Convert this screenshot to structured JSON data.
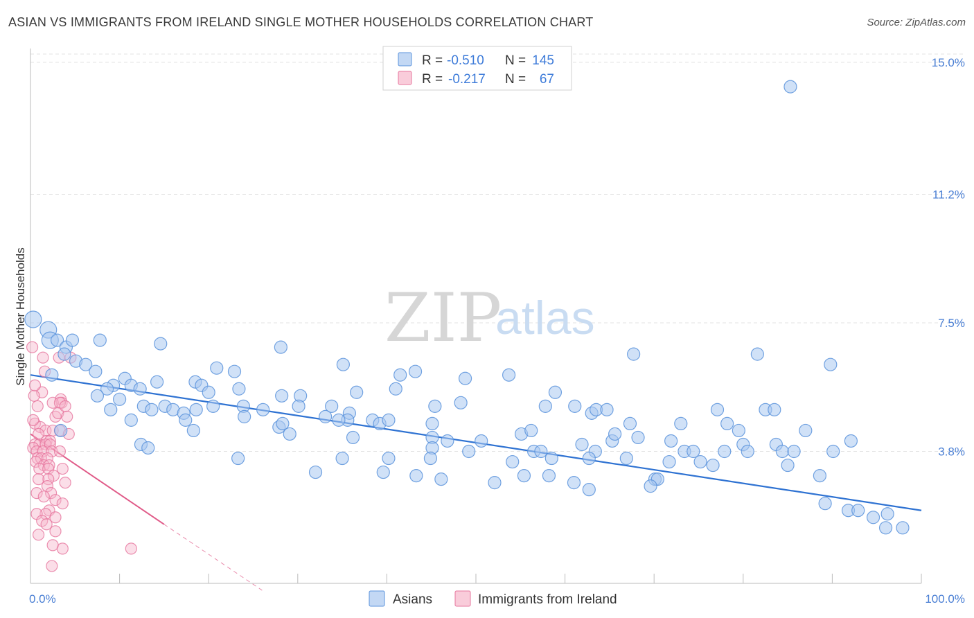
{
  "header": {
    "title": "ASIAN VS IMMIGRANTS FROM IRELAND SINGLE MOTHER HOUSEHOLDS CORRELATION CHART",
    "source": "Source: ZipAtlas.com"
  },
  "watermark": {
    "zip": "ZIP",
    "atlas": "atlas"
  },
  "legend": {
    "rows": [
      {
        "r_label": "R =",
        "r_value": "-0.510",
        "n_label": "N =",
        "n_value": "145",
        "color": "#a9c8f0"
      },
      {
        "r_label": "R =",
        "r_value": "-0.217",
        "n_label": "N =",
        "n_value": "67",
        "color": "#f4aac4"
      }
    ]
  },
  "colors": {
    "blue_fill": "#a9c8f0",
    "blue_stroke": "#5b93dc",
    "blue_line": "#2e72d2",
    "pink_fill": "#f6b6cb",
    "pink_stroke": "#e6769e",
    "pink_line": "#e05a88",
    "grid": "#e3e3e3",
    "axis": "#bbbbbb"
  },
  "chart_data": {
    "type": "scatter",
    "title": "ASIAN VS IMMIGRANTS FROM IRELAND SINGLE MOTHER HOUSEHOLDS CORRELATION CHART",
    "xlabel": "",
    "ylabel": "Single Mother Households",
    "xlim": [
      0,
      100
    ],
    "ylim": [
      0,
      15.4
    ],
    "x_tick_labels": [
      "0.0%",
      "100.0%"
    ],
    "y_ticks": [
      3.8,
      7.5,
      11.2,
      15.0
    ],
    "y_tick_labels": [
      "3.8%",
      "7.5%",
      "11.2%",
      "15.0%"
    ],
    "grid": true,
    "legend_position": "bottom",
    "series": [
      {
        "name": "Asians",
        "trend": {
          "x": [
            0,
            100
          ],
          "y": [
            6.0,
            2.1
          ]
        },
        "points": [
          [
            0.3,
            7.6
          ],
          [
            2.0,
            7.3
          ],
          [
            2.2,
            7.0
          ],
          [
            3.0,
            7.0
          ],
          [
            4.0,
            6.8
          ],
          [
            4.7,
            7.0
          ],
          [
            7.8,
            7.0
          ],
          [
            14.6,
            6.9
          ],
          [
            28.1,
            6.8
          ],
          [
            67.7,
            6.6
          ],
          [
            81.6,
            6.6
          ],
          [
            3.8,
            6.6
          ],
          [
            5.1,
            6.4
          ],
          [
            6.2,
            6.3
          ],
          [
            7.3,
            6.1
          ],
          [
            20.9,
            6.2
          ],
          [
            22.9,
            6.1
          ],
          [
            35.1,
            6.3
          ],
          [
            41.5,
            6.0
          ],
          [
            43.2,
            6.1
          ],
          [
            53.7,
            6.0
          ],
          [
            10.6,
            5.9
          ],
          [
            9.3,
            5.7
          ],
          [
            18.5,
            5.8
          ],
          [
            8.6,
            5.6
          ],
          [
            11.3,
            5.7
          ],
          [
            12.3,
            5.6
          ],
          [
            14.2,
            5.8
          ],
          [
            19.2,
            5.7
          ],
          [
            20.0,
            5.5
          ],
          [
            23.4,
            5.6
          ],
          [
            28.2,
            5.4
          ],
          [
            30.3,
            5.4
          ],
          [
            36.6,
            5.5
          ],
          [
            41.0,
            5.6
          ],
          [
            48.3,
            5.2
          ],
          [
            9.0,
            5.0
          ],
          [
            12.7,
            5.1
          ],
          [
            13.6,
            5.0
          ],
          [
            15.1,
            5.1
          ],
          [
            16.0,
            5.0
          ],
          [
            17.2,
            4.9
          ],
          [
            18.6,
            5.0
          ],
          [
            20.5,
            5.1
          ],
          [
            23.9,
            5.1
          ],
          [
            26.1,
            5.0
          ],
          [
            30.1,
            5.1
          ],
          [
            33.8,
            5.1
          ],
          [
            35.8,
            4.9
          ],
          [
            45.4,
            5.1
          ],
          [
            57.8,
            5.1
          ],
          [
            61.1,
            5.1
          ],
          [
            63.0,
            4.9
          ],
          [
            63.5,
            5.0
          ],
          [
            82.5,
            5.0
          ],
          [
            83.5,
            5.0
          ],
          [
            11.3,
            4.7
          ],
          [
            17.4,
            4.7
          ],
          [
            24.0,
            4.8
          ],
          [
            27.9,
            4.5
          ],
          [
            28.3,
            4.6
          ],
          [
            33.1,
            4.8
          ],
          [
            35.6,
            4.7
          ],
          [
            38.4,
            4.7
          ],
          [
            39.2,
            4.6
          ],
          [
            40.2,
            4.7
          ],
          [
            45.1,
            4.6
          ],
          [
            55.1,
            4.3
          ],
          [
            56.2,
            4.4
          ],
          [
            67.3,
            4.6
          ],
          [
            73.0,
            4.6
          ],
          [
            78.2,
            4.6
          ],
          [
            3.4,
            4.4
          ],
          [
            18.3,
            4.4
          ],
          [
            29.1,
            4.3
          ],
          [
            45.1,
            4.2
          ],
          [
            46.8,
            4.1
          ],
          [
            50.6,
            4.1
          ],
          [
            61.9,
            4.0
          ],
          [
            65.3,
            4.1
          ],
          [
            68.2,
            4.2
          ],
          [
            71.9,
            4.1
          ],
          [
            80.0,
            4.0
          ],
          [
            83.7,
            4.0
          ],
          [
            92.1,
            4.1
          ],
          [
            12.4,
            4.0
          ],
          [
            13.2,
            3.9
          ],
          [
            45.1,
            3.9
          ],
          [
            49.2,
            3.8
          ],
          [
            56.5,
            3.8
          ],
          [
            57.3,
            3.8
          ],
          [
            63.4,
            3.8
          ],
          [
            73.4,
            3.8
          ],
          [
            77.9,
            3.8
          ],
          [
            80.5,
            3.8
          ],
          [
            84.4,
            3.8
          ],
          [
            85.7,
            3.8
          ],
          [
            90.1,
            3.8
          ],
          [
            23.3,
            3.6
          ],
          [
            35.0,
            3.6
          ],
          [
            40.2,
            3.6
          ],
          [
            44.9,
            3.6
          ],
          [
            54.1,
            3.5
          ],
          [
            58.5,
            3.6
          ],
          [
            62.7,
            3.6
          ],
          [
            66.9,
            3.6
          ],
          [
            71.7,
            3.5
          ],
          [
            75.2,
            3.5
          ],
          [
            76.6,
            3.4
          ],
          [
            85.0,
            3.4
          ],
          [
            88.6,
            3.1
          ],
          [
            32.0,
            3.2
          ],
          [
            39.6,
            3.2
          ],
          [
            43.3,
            3.1
          ],
          [
            46.1,
            3.0
          ],
          [
            52.1,
            2.9
          ],
          [
            55.4,
            3.1
          ],
          [
            58.2,
            3.1
          ],
          [
            61.0,
            2.9
          ],
          [
            62.7,
            2.7
          ],
          [
            70.1,
            3.0
          ],
          [
            70.4,
            3.0
          ],
          [
            69.6,
            2.8
          ],
          [
            89.2,
            2.3
          ],
          [
            91.8,
            2.1
          ],
          [
            92.9,
            2.1
          ],
          [
            94.6,
            1.9
          ],
          [
            96.2,
            2.0
          ],
          [
            96.0,
            1.6
          ],
          [
            97.9,
            1.6
          ],
          [
            2.4,
            6.0
          ],
          [
            7.5,
            5.4
          ],
          [
            10.0,
            5.3
          ],
          [
            34.6,
            4.7
          ],
          [
            36.2,
            4.2
          ],
          [
            48.8,
            5.9
          ],
          [
            58.9,
            5.5
          ],
          [
            64.7,
            5.0
          ],
          [
            65.6,
            4.3
          ],
          [
            74.4,
            3.8
          ],
          [
            77.1,
            5.0
          ],
          [
            79.5,
            4.4
          ],
          [
            87.0,
            4.4
          ],
          [
            89.8,
            6.3
          ],
          [
            85.3,
            14.3
          ]
        ]
      },
      {
        "name": "Immigrants from Ireland",
        "trend": {
          "x": [
            0,
            15
          ],
          "y": [
            4.3,
            1.7
          ]
        },
        "trend_extended": {
          "x": [
            15,
            26
          ],
          "y": [
            1.7,
            -0.2
          ]
        },
        "points": [
          [
            0.2,
            6.8
          ],
          [
            1.4,
            6.5
          ],
          [
            3.2,
            6.5
          ],
          [
            4.5,
            6.5
          ],
          [
            1.6,
            6.1
          ],
          [
            1.3,
            5.5
          ],
          [
            0.4,
            5.4
          ],
          [
            3.4,
            5.3
          ],
          [
            3.5,
            5.2
          ],
          [
            2.5,
            5.2
          ],
          [
            3.3,
            5.2
          ],
          [
            0.8,
            5.1
          ],
          [
            2.8,
            4.8
          ],
          [
            3.1,
            4.9
          ],
          [
            4.1,
            4.8
          ],
          [
            0.5,
            4.6
          ],
          [
            1.1,
            4.5
          ],
          [
            1.7,
            4.4
          ],
          [
            2.5,
            4.4
          ],
          [
            3.3,
            4.4
          ],
          [
            4.3,
            4.3
          ],
          [
            0.9,
            4.3
          ],
          [
            1.8,
            4.1
          ],
          [
            2.2,
            4.1
          ],
          [
            0.5,
            4.0
          ],
          [
            1.0,
            4.0
          ],
          [
            1.7,
            4.0
          ],
          [
            2.2,
            4.0
          ],
          [
            0.3,
            3.9
          ],
          [
            0.7,
            3.8
          ],
          [
            1.4,
            3.8
          ],
          [
            2.4,
            3.8
          ],
          [
            3.3,
            3.8
          ],
          [
            0.8,
            3.6
          ],
          [
            1.2,
            3.6
          ],
          [
            1.9,
            3.6
          ],
          [
            0.6,
            3.5
          ],
          [
            1.5,
            3.4
          ],
          [
            2.1,
            3.4
          ],
          [
            1.0,
            3.3
          ],
          [
            2.0,
            3.3
          ],
          [
            3.6,
            3.3
          ],
          [
            2.6,
            3.1
          ],
          [
            2.0,
            3.0
          ],
          [
            0.9,
            3.0
          ],
          [
            1.9,
            2.8
          ],
          [
            3.9,
            2.9
          ],
          [
            2.3,
            2.6
          ],
          [
            0.7,
            2.6
          ],
          [
            1.5,
            2.5
          ],
          [
            2.8,
            2.4
          ],
          [
            3.6,
            2.3
          ],
          [
            2.1,
            2.1
          ],
          [
            1.7,
            2.0
          ],
          [
            0.7,
            2.0
          ],
          [
            2.8,
            1.9
          ],
          [
            1.3,
            1.8
          ],
          [
            1.8,
            1.7
          ],
          [
            2.8,
            1.5
          ],
          [
            0.9,
            1.4
          ],
          [
            3.6,
            1.0
          ],
          [
            11.3,
            1.0
          ],
          [
            2.5,
            1.1
          ],
          [
            2.4,
            0.5
          ],
          [
            0.3,
            4.7
          ],
          [
            0.5,
            5.7
          ],
          [
            3.9,
            5.1
          ]
        ]
      }
    ]
  }
}
